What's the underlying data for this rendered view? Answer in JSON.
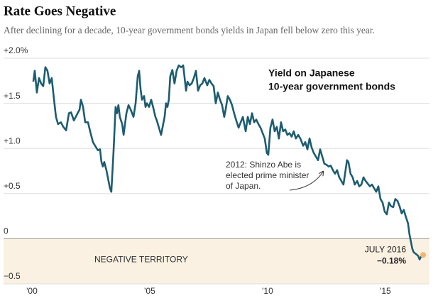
{
  "chart_data": {
    "type": "line",
    "title": "Rate Goes Negative",
    "subtitle": "After declining for a decade, 10-year government bonds yields in Japan fell below zero this year.",
    "legend_label": [
      "Yield on Japanese",
      "10-year government bonds"
    ],
    "annotation": [
      "2012: Shinzo Abe is",
      "elected prime minister",
      "of Japan."
    ],
    "negative_label": "NEGATIVE TERRITORY",
    "negative_fill": "#fbf1e2",
    "grid": true,
    "xlim": [
      1999.79,
      2016.87
    ],
    "ylim": [
      -0.5,
      2.0
    ],
    "xticks": [
      {
        "value": 2000,
        "label": "'00"
      },
      {
        "value": 2005,
        "label": "'05"
      },
      {
        "value": 2010,
        "label": "'10"
      },
      {
        "value": 2015,
        "label": "'15"
      }
    ],
    "yticks": [
      {
        "value": 2.0,
        "label": "+2.0%"
      },
      {
        "value": 1.5,
        "label": "+1.5"
      },
      {
        "value": 1.0,
        "label": "+1.0"
      },
      {
        "value": 0.5,
        "label": "+0.5"
      },
      0,
      {
        "value": -0.5,
        "label": "−0.5"
      }
    ],
    "x": [
      2000.06,
      2000.12,
      2000.21,
      2000.3,
      2000.39,
      2000.48,
      2000.57,
      2000.66,
      2000.75,
      2000.84,
      2000.93,
      2001.02,
      2001.11,
      2001.23,
      2001.33,
      2001.45,
      2001.57,
      2001.66,
      2001.78,
      2001.9,
      2002.02,
      2002.08,
      2002.17,
      2002.26,
      2002.38,
      2002.47,
      2002.59,
      2002.68,
      2002.8,
      2002.89,
      2002.95,
      2003.01,
      2003.07,
      2003.16,
      2003.22,
      2003.31,
      2003.37,
      2003.46,
      2003.55,
      2003.61,
      2003.67,
      2003.73,
      2003.83,
      2003.89,
      2003.95,
      2004.01,
      2004.1,
      2004.19,
      2004.31,
      2004.4,
      2004.49,
      2004.55,
      2004.61,
      2004.67,
      2004.76,
      2004.82,
      2004.88,
      2004.97,
      2005.06,
      2005.15,
      2005.24,
      2005.3,
      2005.39,
      2005.48,
      2005.57,
      2005.63,
      2005.69,
      2005.75,
      2005.81,
      2005.87,
      2005.96,
      2006.05,
      2006.14,
      2006.23,
      2006.33,
      2006.42,
      2006.48,
      2006.54,
      2006.6,
      2006.69,
      2006.78,
      2006.87,
      2006.96,
      2007.05,
      2007.14,
      2007.23,
      2007.32,
      2007.44,
      2007.53,
      2007.62,
      2007.71,
      2007.8,
      2007.89,
      2007.98,
      2008.07,
      2008.16,
      2008.22,
      2008.31,
      2008.4,
      2008.49,
      2008.58,
      2008.67,
      2008.77,
      2008.86,
      2008.95,
      2009.07,
      2009.16,
      2009.25,
      2009.34,
      2009.43,
      2009.52,
      2009.61,
      2009.7,
      2009.79,
      2009.88,
      2009.97,
      2010.03,
      2010.12,
      2010.21,
      2010.3,
      2010.39,
      2010.48,
      2010.57,
      2010.66,
      2010.75,
      2010.84,
      2010.93,
      2011.02,
      2011.11,
      2011.2,
      2011.3,
      2011.39,
      2011.51,
      2011.6,
      2011.69,
      2011.78,
      2011.87,
      2011.96,
      2012.05,
      2012.14,
      2012.23,
      2012.32,
      2012.41,
      2012.5,
      2012.59,
      2012.68,
      2012.77,
      2012.86,
      2012.95,
      2013.04,
      2013.13,
      2013.22,
      2013.31,
      2013.37,
      2013.43,
      2013.52,
      2013.61,
      2013.7,
      2013.8,
      2013.89,
      2013.98,
      2014.07,
      2014.16,
      2014.25,
      2014.34,
      2014.43,
      2014.52,
      2014.61,
      2014.7,
      2014.79,
      2014.88,
      2014.97,
      2015.06,
      2015.15,
      2015.24,
      2015.33,
      2015.42,
      2015.51,
      2015.6,
      2015.69,
      2015.78,
      2015.87,
      2015.96,
      2016.02,
      2016.08,
      2016.14,
      2016.2,
      2016.3,
      2016.39,
      2016.45,
      2016.51,
      2016.6
    ],
    "series": [
      {
        "color": "#1d5c70",
        "values": [
          1.74,
          1.86,
          1.62,
          1.78,
          1.72,
          1.69,
          1.9,
          1.86,
          1.72,
          1.78,
          1.56,
          1.35,
          1.27,
          1.29,
          1.24,
          1.2,
          1.39,
          1.4,
          1.31,
          1.37,
          1.43,
          1.54,
          1.46,
          1.29,
          1.29,
          1.19,
          1.07,
          1.03,
          0.98,
          0.99,
          0.85,
          0.8,
          0.85,
          0.76,
          0.68,
          0.56,
          0.52,
          0.95,
          1.46,
          1.39,
          1.48,
          1.35,
          1.27,
          1.15,
          1.27,
          1.39,
          1.48,
          1.43,
          1.35,
          1.5,
          1.8,
          1.86,
          1.66,
          1.54,
          1.58,
          1.46,
          1.5,
          1.46,
          1.54,
          1.45,
          1.35,
          1.31,
          1.23,
          1.15,
          1.27,
          1.35,
          1.5,
          1.46,
          1.54,
          1.8,
          1.87,
          1.72,
          1.86,
          1.92,
          1.9,
          1.92,
          1.78,
          1.64,
          1.74,
          1.7,
          1.72,
          1.78,
          1.86,
          1.64,
          1.7,
          1.72,
          1.78,
          1.7,
          1.76,
          1.72,
          1.69,
          1.5,
          1.62,
          1.54,
          1.48,
          1.35,
          1.43,
          1.58,
          1.54,
          1.48,
          1.39,
          1.31,
          1.23,
          1.29,
          1.35,
          1.19,
          1.35,
          1.27,
          1.39,
          1.29,
          1.32,
          1.27,
          1.23,
          1.17,
          1.11,
          0.95,
          0.93,
          1.23,
          1.32,
          1.19,
          1.24,
          1.11,
          1.29,
          1.19,
          1.21,
          1.15,
          1.17,
          1.13,
          1.19,
          1.11,
          1.15,
          1.11,
          1.03,
          1.07,
          0.99,
          1.11,
          1.01,
          0.95,
          0.91,
          0.87,
          0.99,
          0.91,
          0.83,
          0.82,
          0.8,
          0.81,
          0.76,
          0.72,
          0.76,
          0.68,
          0.64,
          0.6,
          0.76,
          0.87,
          0.85,
          0.72,
          0.68,
          0.6,
          0.64,
          0.58,
          0.6,
          0.68,
          0.64,
          0.61,
          0.58,
          0.6,
          0.56,
          0.52,
          0.58,
          0.44,
          0.4,
          0.3,
          0.27,
          0.4,
          0.36,
          0.35,
          0.44,
          0.42,
          0.36,
          0.28,
          0.32,
          0.24,
          0.17,
          0.05,
          -0.03,
          -0.11,
          -0.15,
          -0.17,
          -0.19,
          -0.23,
          -0.2,
          -0.18
        ]
      }
    ],
    "highlight": {
      "label": "JULY 2016",
      "x": 2016.6,
      "value": -0.18,
      "value_label": "−0.18%",
      "color": "#f2b66b"
    }
  }
}
